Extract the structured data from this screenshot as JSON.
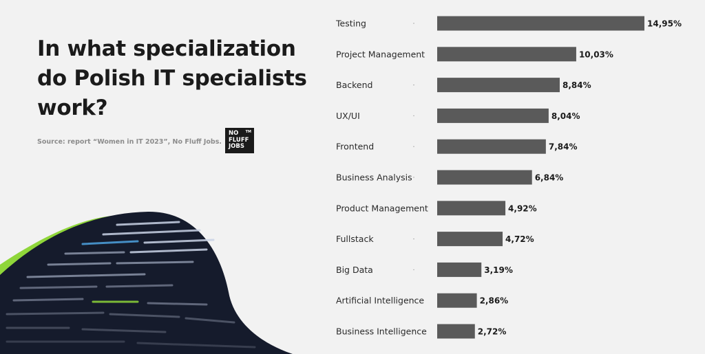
{
  "headline": "In what specialization do Polish IT specialists work?",
  "source": "Source: report “Women in IT 2023”, No Fluff Jobs.",
  "logo": {
    "line1": "NO",
    "line2": "FLUFF",
    "line3": "JOBS",
    "tm": "TM"
  },
  "colors": {
    "bar": "#5a5a5a",
    "background": "#f2f2f2",
    "accent": "#8fd63a",
    "code_bg": "#151b2c"
  },
  "chart_data": {
    "type": "bar",
    "orientation": "horizontal",
    "title": "",
    "xlabel": "",
    "ylabel": "",
    "categories": [
      "Testing",
      "Project Management",
      "Backend",
      "UX/UI",
      "Frontend",
      "Business Analysis",
      "Product Management",
      "Fullstack",
      "Big Data",
      "Artificial Intelligence",
      "Business Intelligence"
    ],
    "values": [
      14.95,
      10.03,
      8.84,
      8.04,
      7.84,
      6.84,
      4.92,
      4.72,
      3.19,
      2.86,
      2.72
    ],
    "value_labels": [
      "14,95%",
      "10,03%",
      "8,84%",
      "8,04%",
      "7,84%",
      "6,84%",
      "4,92%",
      "4,72%",
      "3,19%",
      "2,86%",
      "2,72%"
    ],
    "xlim": [
      0,
      15
    ],
    "grid": false,
    "legend": "none"
  }
}
